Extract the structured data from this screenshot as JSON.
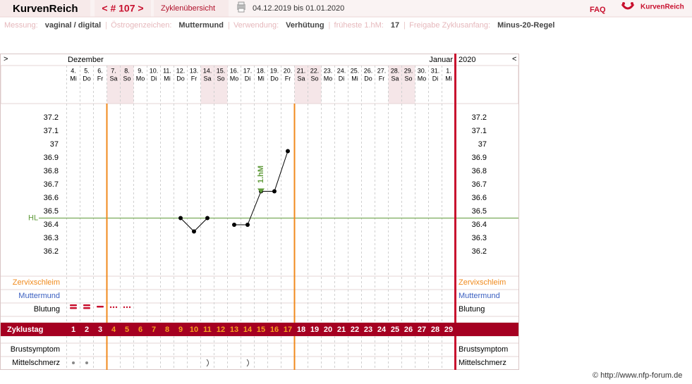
{
  "header": {
    "app": "KurvenReich",
    "cycle_nav": "< # 107 >",
    "tab": "Zyklenübersicht",
    "date_range": "04.12.2019 bis 01.01.2020",
    "faq": "FAQ",
    "logo": "KurvenReich"
  },
  "info": [
    {
      "label": "Messung:",
      "value": "vaginal / digital"
    },
    {
      "label": "Östrogenzeichen:",
      "value": "Muttermund"
    },
    {
      "label": "Verwendung:",
      "value": "Verhütung"
    },
    {
      "label": "früheste 1.hM:",
      "value": "17"
    },
    {
      "label": "Freigabe Zyklusanfang:",
      "value": "Minus-20-Regel"
    }
  ],
  "calendar": {
    "prev": ">",
    "next": "<",
    "month_start": "Dezember",
    "month_end": "Januar",
    "year": "2020"
  },
  "rows": {
    "cervical": "Zervixschleim",
    "cervix": "Muttermund",
    "bleeding": "Blutung",
    "cycle_day": "Zyklustag",
    "breast": "Brustsymptom",
    "pain": "Mittelschmerz"
  },
  "cycle_days": [
    1,
    2,
    3,
    4,
    5,
    6,
    7,
    8,
    9,
    10,
    11,
    12,
    13,
    14,
    15,
    16,
    17,
    18,
    19,
    20,
    21,
    22,
    23,
    24,
    25,
    26,
    27,
    28,
    29
  ],
  "cycle_day_highlight": {
    "from": 4,
    "to": 17,
    "color": "#f5a21e"
  },
  "chart_data": {
    "type": "line",
    "categories": [
      "4.",
      "5.",
      "6.",
      "7.",
      "8.",
      "9.",
      "10.",
      "11.",
      "12.",
      "13.",
      "14.",
      "15.",
      "16.",
      "17.",
      "18.",
      "19.",
      "20.",
      "21.",
      "22.",
      "23.",
      "24.",
      "25.",
      "26.",
      "27.",
      "28.",
      "29.",
      "30.",
      "31.",
      "1."
    ],
    "weekdays": [
      "Mi",
      "Do",
      "Fr",
      "Sa",
      "So",
      "Mo",
      "Di",
      "Mi",
      "Do",
      "Fr",
      "Sa",
      "So",
      "Mo",
      "Di",
      "Mi",
      "Do",
      "Fr",
      "Sa",
      "So",
      "Mo",
      "Di",
      "Mi",
      "Do",
      "Fr",
      "Sa",
      "So",
      "Mo",
      "Di",
      "Mi"
    ],
    "series": [
      {
        "color": "#000000",
        "values": [
          null,
          null,
          null,
          null,
          null,
          null,
          null,
          null,
          36.45,
          36.35,
          36.45,
          null,
          36.4,
          36.4,
          36.65,
          36.65,
          36.95,
          null,
          null,
          null,
          null,
          null,
          null,
          null,
          null,
          null,
          null,
          null,
          null
        ]
      }
    ],
    "ylim": [
      36.0,
      37.3
    ],
    "yticks": [
      37.2,
      37.1,
      37,
      36.9,
      36.8,
      36.7,
      36.6,
      36.5,
      36.4,
      36.3,
      36.2
    ],
    "cover_line": {
      "label": "HL",
      "value": 36.45,
      "color": "#5f9a3a"
    },
    "marker": {
      "label": "1.hM",
      "day": "18.",
      "color": "#5f9a3a"
    }
  },
  "footer": "© http://www.nfp-forum.de"
}
